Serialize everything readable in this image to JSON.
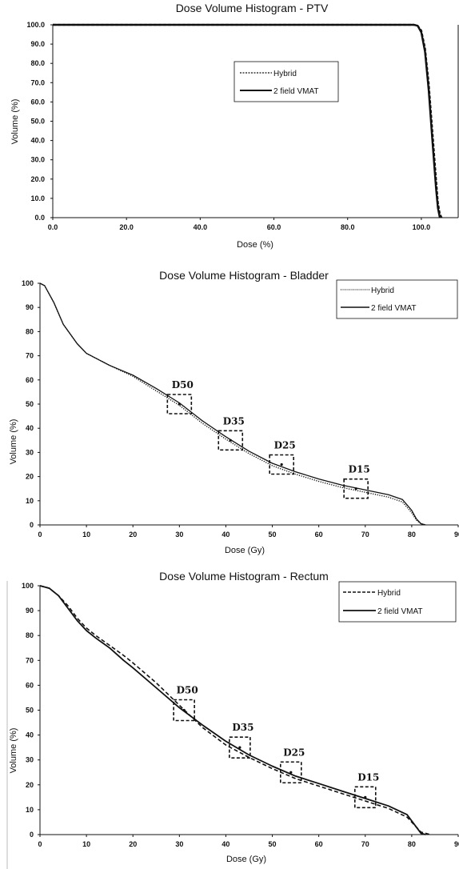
{
  "charts": [
    {
      "title": "Dose Volume Histogram - PTV",
      "xlabel": "Dose (%)",
      "ylabel": "Volume (%)",
      "xticks": [
        "0.0",
        "20.0",
        "40.0",
        "60.0",
        "80.0",
        "100.0"
      ],
      "yticks": [
        "0.0",
        "10.0",
        "20.0",
        "30.0",
        "40.0",
        "50.0",
        "60.0",
        "70.0",
        "80.0",
        "90.0",
        "100.0"
      ],
      "legend_hybrid": "Hybrid",
      "legend_vmat": "2 field VMAT"
    },
    {
      "title": "Dose Volume Histogram - Bladder",
      "xlabel": "Dose (Gy)",
      "ylabel": "Volume (%)",
      "xticks": [
        "0",
        "10",
        "20",
        "30",
        "40",
        "50",
        "60",
        "70",
        "80",
        "90"
      ],
      "yticks": [
        "0",
        "10",
        "20",
        "30",
        "40",
        "50",
        "60",
        "70",
        "80",
        "90",
        "100"
      ],
      "legend_hybrid": "Hybrid",
      "legend_vmat": "2 field VMAT",
      "annotations": [
        "D50",
        "D35",
        "D25",
        "D15"
      ]
    },
    {
      "title": "Dose Volume Histogram - Rectum",
      "xlabel": "Dose (Gy)",
      "ylabel": "Volume (%)",
      "xticks": [
        "0",
        "10",
        "20",
        "30",
        "40",
        "50",
        "60",
        "70",
        "80",
        "90"
      ],
      "yticks": [
        "0",
        "10",
        "20",
        "30",
        "40",
        "50",
        "60",
        "70",
        "80",
        "90",
        "100"
      ],
      "legend_hybrid": "Hybrid",
      "legend_vmat": "2 field VMAT",
      "annotations": [
        "D50",
        "D35",
        "D25",
        "D15"
      ]
    }
  ],
  "chart_data": [
    {
      "type": "line",
      "title": "Dose Volume Histogram - PTV",
      "xlabel": "Dose (%)",
      "ylabel": "Volume (%)",
      "xlim": [
        0,
        110
      ],
      "ylim": [
        0,
        100
      ],
      "grid": false,
      "legend_position": "top-center",
      "series": [
        {
          "name": "Hybrid",
          "style": "dashed",
          "x": [
            0,
            95,
            98,
            99,
            100,
            101,
            102,
            103,
            104,
            104.5,
            105,
            105.5
          ],
          "y": [
            100,
            100,
            100,
            99.5,
            97,
            88,
            70,
            45,
            20,
            8,
            2,
            0
          ]
        },
        {
          "name": "2 field VMAT",
          "style": "solid",
          "x": [
            0,
            95,
            98,
            99,
            100,
            101,
            102,
            103,
            104,
            104.5,
            105
          ],
          "y": [
            100,
            100,
            100,
            99.5,
            96,
            86,
            66,
            40,
            15,
            5,
            0
          ]
        }
      ]
    },
    {
      "type": "line",
      "title": "Dose Volume Histogram - Bladder",
      "xlabel": "Dose (Gy)",
      "ylabel": "Volume (%)",
      "xlim": [
        0,
        90
      ],
      "ylim": [
        0,
        100
      ],
      "grid": false,
      "legend_position": "top-right",
      "series": [
        {
          "name": "Hybrid",
          "style": "dotted",
          "x": [
            0,
            1,
            3,
            5,
            8,
            10,
            15,
            20,
            25,
            30,
            35,
            40,
            45,
            50,
            55,
            60,
            65,
            70,
            75,
            78,
            80,
            81,
            82,
            83
          ],
          "y": [
            100,
            99,
            92,
            83,
            75,
            71,
            66,
            61.5,
            55.5,
            49.5,
            42,
            35.5,
            29.5,
            24.5,
            21,
            18,
            15.5,
            13.5,
            11.5,
            9.5,
            5,
            2,
            0.5,
            0
          ]
        },
        {
          "name": "2 field VMAT",
          "style": "solid",
          "x": [
            0,
            1,
            3,
            5,
            8,
            10,
            15,
            20,
            25,
            30,
            35,
            40,
            45,
            50,
            55,
            60,
            65,
            70,
            75,
            78,
            80,
            81,
            82,
            83
          ],
          "y": [
            100,
            99,
            92,
            83,
            75,
            71,
            66,
            62,
            56.5,
            50.5,
            43,
            36.5,
            30.5,
            25.5,
            22,
            19,
            16.5,
            14.5,
            12.5,
            10.5,
            6,
            2.5,
            0.5,
            0
          ]
        }
      ],
      "annotations": [
        {
          "text": "D50",
          "x": 30,
          "y": 50
        },
        {
          "text": "D35",
          "x": 41,
          "y": 35
        },
        {
          "text": "D25",
          "x": 52,
          "y": 25
        },
        {
          "text": "D15",
          "x": 68,
          "y": 15
        }
      ]
    },
    {
      "type": "line",
      "title": "Dose Volume Histogram - Rectum",
      "xlabel": "Dose (Gy)",
      "ylabel": "Volume (%)",
      "xlim": [
        0,
        90
      ],
      "ylim": [
        0,
        100
      ],
      "grid": false,
      "legend_position": "top-right",
      "series": [
        {
          "name": "Hybrid",
          "style": "dashed",
          "x": [
            0,
            2,
            4,
            6,
            8,
            10,
            12,
            15,
            18,
            20,
            25,
            30,
            35,
            40,
            45,
            50,
            55,
            60,
            65,
            70,
            75,
            79,
            81,
            82,
            83,
            84
          ],
          "y": [
            100,
            99,
            96,
            92,
            87,
            83,
            80,
            76,
            72,
            69,
            61,
            52,
            43,
            36,
            31,
            26.5,
            22.5,
            19.5,
            16.5,
            13.5,
            10.5,
            7,
            3,
            1,
            0.5,
            0
          ]
        },
        {
          "name": "2 field VMAT",
          "style": "solid",
          "x": [
            0,
            2,
            4,
            6,
            8,
            10,
            12,
            15,
            18,
            20,
            25,
            30,
            35,
            40,
            45,
            50,
            55,
            60,
            65,
            70,
            75,
            79,
            81,
            82,
            83
          ],
          "y": [
            100,
            99,
            96,
            91,
            86,
            82,
            79,
            75,
            70,
            67,
            59,
            51,
            44,
            37.5,
            32,
            27.5,
            23.5,
            20.5,
            17.5,
            14.5,
            11.5,
            8,
            3,
            0.5,
            0
          ]
        }
      ],
      "annotations": [
        {
          "text": "D50",
          "x": 31,
          "y": 50
        },
        {
          "text": "D35",
          "x": 43,
          "y": 35
        },
        {
          "text": "D25",
          "x": 54,
          "y": 25
        },
        {
          "text": "D15",
          "x": 70,
          "y": 15
        }
      ]
    }
  ]
}
